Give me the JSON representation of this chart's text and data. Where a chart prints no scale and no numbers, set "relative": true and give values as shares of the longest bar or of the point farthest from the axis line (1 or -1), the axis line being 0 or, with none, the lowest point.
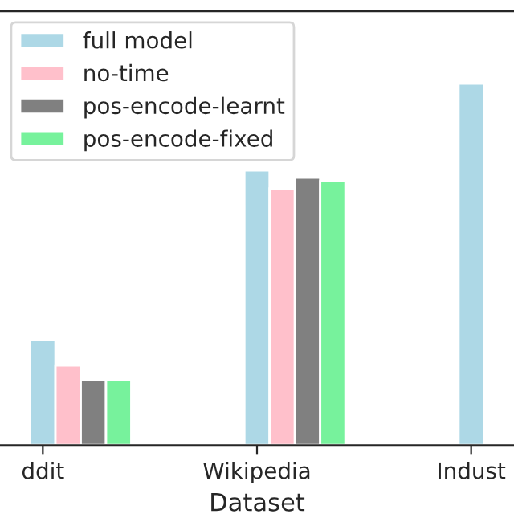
{
  "chart_data": {
    "type": "bar",
    "relative": true,
    "xlabel": "Dataset",
    "categories": [
      "ddit",
      "Wikipedia",
      "Indust"
    ],
    "legend": "top left",
    "grid": false,
    "series": [
      {
        "name": "full model",
        "color": "#add8e6",
        "values": [
          0.29,
          0.76,
          1
        ]
      },
      {
        "name": "no-time",
        "color": "#ffc0cb",
        "values": [
          0.22,
          0.71,
          null
        ]
      },
      {
        "name": "pos-encode-learnt",
        "color": "#808080",
        "values": [
          0.18,
          0.74,
          null
        ]
      },
      {
        "name": "pos-encode-fixed",
        "color": "#77f29c",
        "values": [
          0.18,
          0.73,
          null
        ]
      }
    ]
  }
}
